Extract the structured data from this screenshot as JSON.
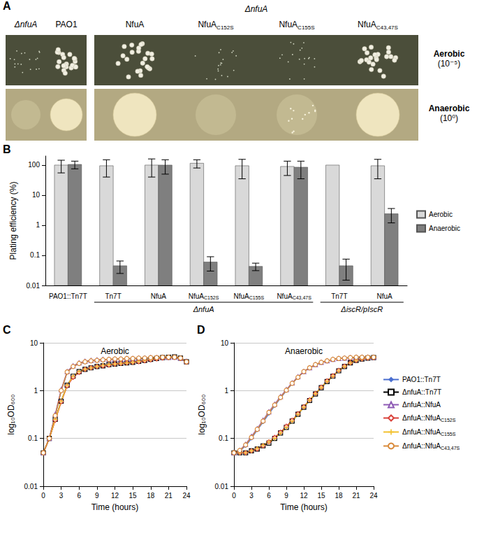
{
  "panel_a": {
    "panel": "A",
    "columns_left": [
      "ΔnfuA",
      "PAO1"
    ],
    "group": "ΔnfuA",
    "columns_right": [
      "NfuA",
      "NfuAC152S",
      "NfuAC155S",
      "NfuAC43,47S"
    ],
    "rows": [
      {
        "label": "Aerobic",
        "dilution": "(10⁻⁵)"
      },
      {
        "label": "Anaerobic",
        "dilution": "(10⁰)"
      }
    ]
  },
  "chart_data": [
    {
      "panel": "B",
      "type": "bar",
      "categories": [
        "PAO1::Tn7T",
        "Tn7T",
        "NfuA",
        "NfuAC152S",
        "NfuAC155S",
        "NfuAC43,47S",
        "Tn7T",
        "NfuA"
      ],
      "category_groups": [
        {
          "label": "ΔnfuA",
          "span": [
            1,
            5
          ]
        },
        {
          "label": "ΔiscR/pIscR",
          "span": [
            6,
            7
          ]
        }
      ],
      "y_label": "Plating efficiency (%)",
      "log": "y",
      "ylim": [
        0.01,
        200
      ],
      "yticks": [
        0.01,
        0.1,
        1,
        10,
        100
      ],
      "grid": false,
      "legend": "right",
      "series": [
        {
          "name": "Aerobic",
          "color": "#d9d9d9",
          "values": [
            100,
            95,
            100,
            115,
            95,
            90,
            100,
            95
          ],
          "errors": [
            45,
            55,
            60,
            35,
            60,
            45,
            0,
            60
          ]
        },
        {
          "name": "Anaerobic",
          "color": "#7f7f7f",
          "values": [
            105,
            0.045,
            100,
            0.06,
            0.043,
            85,
            0.045,
            2.4
          ],
          "errors": [
            30,
            0.02,
            50,
            0.03,
            0.012,
            50,
            0.03,
            1.2
          ]
        }
      ]
    },
    {
      "panel": "C",
      "type": "line",
      "title": "Aerobic",
      "x_label": "Time (hours)",
      "y_label": "log₁₀OD₆₀₀",
      "log": "y",
      "x": [
        0,
        1,
        2,
        3,
        4,
        5,
        6,
        7,
        8,
        9,
        10,
        11,
        12,
        13,
        14,
        15,
        16,
        17,
        18,
        19,
        20,
        21,
        22,
        23,
        24
      ],
      "xlim": [
        0,
        24
      ],
      "xticks": [
        0,
        3,
        6,
        9,
        12,
        15,
        18,
        21,
        24
      ],
      "ylim": [
        0.01,
        10
      ],
      "yticks": [
        0.01,
        0.1,
        1,
        10
      ],
      "grid": true,
      "series": [
        {
          "name": "PAO1::Tn7T",
          "color": "#4a6fd0",
          "marker": "diamond",
          "values": [
            0.05,
            0.1,
            0.3,
            1.0,
            2.4,
            3.2,
            3.7,
            4.0,
            4.2,
            4.3,
            4.4,
            4.5,
            4.5,
            4.6,
            4.6,
            4.7,
            4.7,
            4.8,
            4.8,
            4.9,
            4.9,
            5.0,
            5.0,
            4.8,
            4.0
          ]
        },
        {
          "name": "ΔnfuA::Tn7T",
          "color": "#000000",
          "marker": "open square",
          "values": [
            0.05,
            0.1,
            0.25,
            0.6,
            1.3,
            2.0,
            2.5,
            2.8,
            3.0,
            3.2,
            3.3,
            3.5,
            3.6,
            3.7,
            3.8,
            3.9,
            4.1,
            4.3,
            4.5,
            4.7,
            4.9,
            5.0,
            5.1,
            4.8,
            4.0
          ]
        },
        {
          "name": "ΔnfuA::NfuA",
          "color": "#8e5bb5",
          "marker": "open triangle",
          "values": [
            0.05,
            0.1,
            0.32,
            1.05,
            2.5,
            3.3,
            3.8,
            4.1,
            4.3,
            4.4,
            4.5,
            4.5,
            4.6,
            4.6,
            4.7,
            4.7,
            4.8,
            4.8,
            4.9,
            4.9,
            5.0,
            5.0,
            5.0,
            4.8,
            4.1
          ]
        },
        {
          "name": "ΔnfuA::NfuAC152S",
          "color": "#d9413a",
          "marker": "open diamond",
          "values": [
            0.05,
            0.1,
            0.24,
            0.58,
            1.25,
            1.9,
            2.4,
            2.8,
            3.0,
            3.2,
            3.3,
            3.4,
            3.6,
            3.7,
            3.8,
            3.9,
            4.0,
            4.2,
            4.4,
            4.6,
            4.8,
            4.9,
            5.0,
            4.7,
            3.9
          ]
        },
        {
          "name": "ΔnfuA::NfuAC155S",
          "color": "#f2c12e",
          "marker": "plus",
          "values": [
            0.05,
            0.1,
            0.25,
            0.6,
            1.3,
            2.0,
            2.5,
            2.8,
            3.0,
            3.2,
            3.4,
            3.5,
            3.6,
            3.7,
            3.8,
            3.9,
            4.1,
            4.3,
            4.5,
            4.7,
            4.9,
            5.0,
            5.0,
            4.8,
            4.0
          ]
        },
        {
          "name": "ΔnfuA::NfuAC43,47S",
          "color": "#d98a3a",
          "marker": "open circle",
          "values": [
            0.05,
            0.1,
            0.3,
            1.0,
            2.45,
            3.2,
            3.7,
            4.0,
            4.2,
            4.3,
            4.4,
            4.5,
            4.6,
            4.6,
            4.7,
            4.7,
            4.8,
            4.8,
            4.9,
            4.9,
            5.0,
            5.0,
            5.0,
            4.8,
            4.0
          ]
        }
      ]
    },
    {
      "panel": "D",
      "type": "line",
      "title": "Anaerobic",
      "x_label": "Time (hours)",
      "y_label": "log₁₀OD₆₀₀",
      "log": "y",
      "x": [
        0,
        1,
        2,
        3,
        4,
        5,
        6,
        7,
        8,
        9,
        10,
        11,
        12,
        13,
        14,
        15,
        16,
        17,
        18,
        19,
        20,
        21,
        22,
        23,
        24
      ],
      "xlim": [
        0,
        24
      ],
      "xticks": [
        0,
        3,
        6,
        9,
        12,
        15,
        18,
        21,
        24
      ],
      "ylim": [
        0.01,
        10
      ],
      "yticks": [
        0.01,
        0.1,
        1,
        10
      ],
      "grid": true,
      "legend": "right",
      "series": [
        {
          "name": "PAO1::Tn7T",
          "color": "#4a6fd0",
          "marker": "diamond",
          "values": [
            0.05,
            0.055,
            0.07,
            0.1,
            0.15,
            0.22,
            0.33,
            0.48,
            0.7,
            1.0,
            1.4,
            1.9,
            2.5,
            3.0,
            3.5,
            3.9,
            4.2,
            4.5,
            4.7,
            4.8,
            4.9,
            5.0,
            5.0,
            5.0,
            5.0
          ]
        },
        {
          "name": "ΔnfuA::Tn7T",
          "color": "#000000",
          "marker": "open square",
          "values": [
            0.05,
            0.05,
            0.05,
            0.055,
            0.06,
            0.07,
            0.08,
            0.1,
            0.13,
            0.17,
            0.23,
            0.32,
            0.45,
            0.62,
            0.85,
            1.15,
            1.55,
            2.0,
            2.6,
            3.2,
            3.8,
            4.3,
            4.6,
            4.8,
            4.9
          ]
        },
        {
          "name": "ΔnfuA::NfuA",
          "color": "#8e5bb5",
          "marker": "open triangle",
          "values": [
            0.05,
            0.056,
            0.075,
            0.11,
            0.16,
            0.24,
            0.36,
            0.52,
            0.75,
            1.05,
            1.45,
            1.95,
            2.5,
            3.0,
            3.5,
            3.9,
            4.2,
            4.5,
            4.7,
            4.8,
            4.9,
            5.0,
            5.0,
            5.0,
            5.0
          ]
        },
        {
          "name": "ΔnfuA::NfuAC152S",
          "color": "#d9413a",
          "marker": "open diamond",
          "values": [
            0.05,
            0.05,
            0.05,
            0.055,
            0.06,
            0.07,
            0.085,
            0.105,
            0.135,
            0.18,
            0.24,
            0.33,
            0.46,
            0.64,
            0.87,
            1.18,
            1.6,
            2.05,
            2.65,
            3.25,
            3.8,
            4.3,
            4.6,
            4.8,
            4.9
          ]
        },
        {
          "name": "ΔnfuA::NfuAC155S",
          "color": "#f2c12e",
          "marker": "plus",
          "values": [
            0.05,
            0.05,
            0.05,
            0.055,
            0.062,
            0.072,
            0.085,
            0.1,
            0.13,
            0.17,
            0.23,
            0.32,
            0.45,
            0.63,
            0.86,
            1.16,
            1.56,
            2.0,
            2.6,
            3.2,
            3.8,
            4.3,
            4.6,
            4.8,
            4.9
          ]
        },
        {
          "name": "ΔnfuA::NfuAC43,47S",
          "color": "#d98a3a",
          "marker": "open circle",
          "values": [
            0.05,
            0.056,
            0.073,
            0.105,
            0.155,
            0.23,
            0.35,
            0.5,
            0.72,
            1.02,
            1.42,
            1.9,
            2.5,
            3.0,
            3.5,
            3.9,
            4.2,
            4.5,
            4.7,
            4.8,
            4.9,
            5.0,
            5.0,
            5.0,
            5.0
          ]
        }
      ]
    }
  ]
}
